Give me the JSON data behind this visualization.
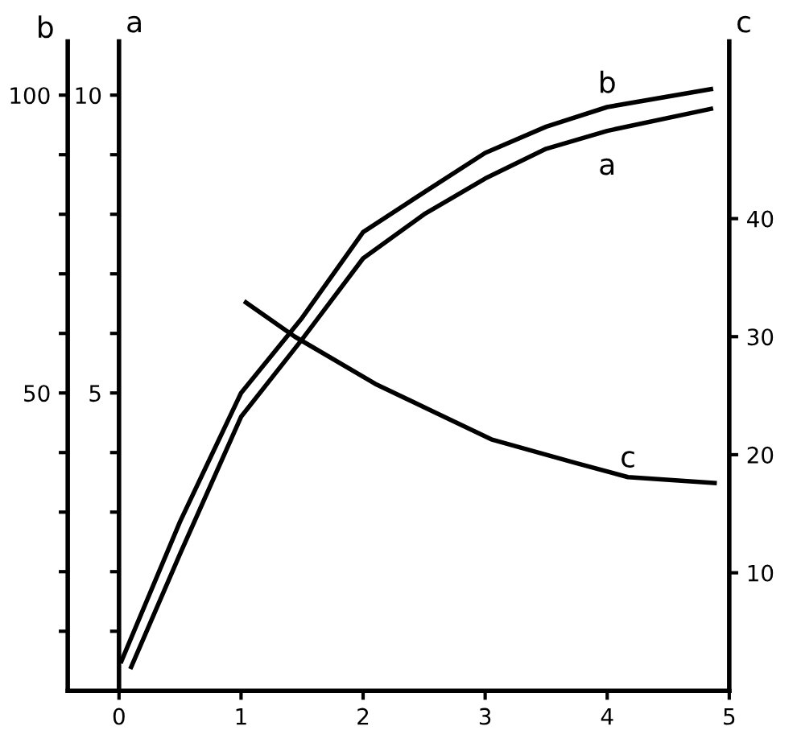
{
  "chart_data": {
    "type": "line",
    "ylabel": "b",
    "y2label": "a",
    "y3label": "c",
    "xlim": [
      -0.42,
      5
    ],
    "xticks": [
      0,
      1,
      2,
      3,
      4,
      5
    ],
    "y2lim": [
      0,
      10.9
    ],
    "y2ticks": [
      {
        "value": 1,
        "label": null
      },
      {
        "value": 2,
        "label": null
      },
      {
        "value": 3,
        "label": null
      },
      {
        "value": 4,
        "label": null
      },
      5,
      {
        "value": 6,
        "label": null
      },
      {
        "value": 7,
        "label": null
      },
      {
        "value": 8,
        "label": null
      },
      {
        "value": 9,
        "label": null
      },
      10
    ],
    "ylim": [
      0,
      109
    ],
    "yticks": [
      {
        "value": 10,
        "label": null
      },
      {
        "value": 20,
        "label": null
      },
      {
        "value": 30,
        "label": null
      },
      {
        "value": 40,
        "label": null
      },
      50,
      {
        "value": 60,
        "label": null
      },
      {
        "value": 70,
        "label": null
      },
      {
        "value": 80,
        "label": null
      },
      {
        "value": 90,
        "label": null
      },
      100
    ],
    "y3lim": [
      0,
      55
    ],
    "y3ticks": [
      10,
      20,
      30,
      40
    ],
    "legend": false,
    "marker": "none",
    "line_style": "solid",
    "series": [
      {
        "name": "a",
        "color": "#000000",
        "axis": "y2",
        "x": [
          0.1,
          0.5,
          1,
          1.5,
          2,
          2.5,
          3,
          3.5,
          4,
          4.85
        ],
        "values": [
          0.4,
          2.3,
          4.6,
          5.9,
          7.26,
          8.0,
          8.6,
          9.1,
          9.4,
          9.77
        ]
      },
      {
        "name": "b",
        "color": "#000000",
        "x": [
          0.02,
          0.5,
          1,
          1.5,
          2,
          2.5,
          3,
          3.5,
          4,
          4.85
        ],
        "values": [
          5,
          28.4,
          50,
          62.6,
          77,
          83.7,
          90.3,
          94.7,
          98,
          101
        ]
      },
      {
        "name": "c",
        "color": "#000000",
        "axis": "y3",
        "x": [
          1.04,
          1.44,
          2.1,
          3.05,
          3.74,
          4.17,
          4.88
        ],
        "values": [
          32.9,
          30,
          26,
          21.3,
          19.3,
          18.1,
          17.6
        ]
      }
    ]
  }
}
